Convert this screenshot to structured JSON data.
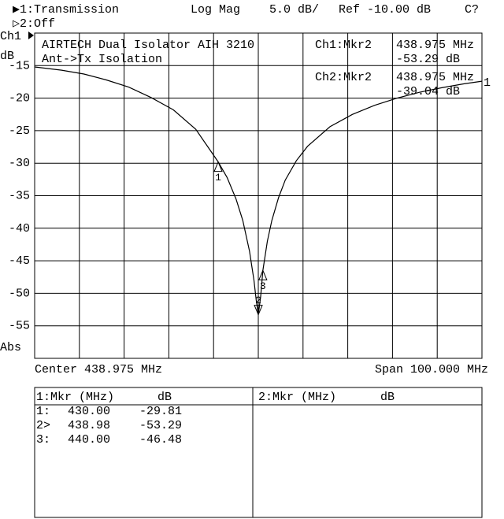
{
  "header": {
    "channel1": "▶1:Transmission",
    "format": "Log Mag",
    "scale": "5.0 dB/",
    "reference": "Ref -10.00 dB",
    "status": "C?",
    "channel2": "▷2:Off"
  },
  "side": {
    "channel": "Ch1",
    "unit": "dB",
    "mode": "Abs"
  },
  "chart_data": {
    "type": "line",
    "title": "AIRTECH Dual Isolator AIH 3210",
    "subtitle": "Ant->Tx Isolation",
    "x": [
      388.975,
      395,
      400,
      405,
      410,
      415,
      420,
      425,
      428,
      430,
      432,
      434,
      435.5,
      437,
      438,
      438.5,
      438.975,
      439.5,
      440,
      441,
      442,
      443.5,
      445,
      447.5,
      450,
      455,
      460,
      465,
      470,
      475,
      480,
      485,
      488.975
    ],
    "values": [
      -15.2,
      -15.7,
      -16.3,
      -17.2,
      -18.3,
      -19.9,
      -21.8,
      -24.8,
      -27.8,
      -29.8,
      -32.2,
      -35.5,
      -38.8,
      -43.5,
      -48.0,
      -51.0,
      -53.3,
      -50.5,
      -46.5,
      -42.0,
      -38.8,
      -35.3,
      -32.6,
      -29.6,
      -27.4,
      -24.4,
      -22.5,
      -21.1,
      -20.0,
      -19.1,
      -18.4,
      -17.8,
      -17.4
    ],
    "color": "#000000",
    "trace_label": "1",
    "xlim": [
      388.975,
      488.975
    ],
    "ylim": [
      -60,
      -10
    ],
    "yticks": [
      -15,
      -20,
      -25,
      -30,
      -35,
      -40,
      -45,
      -50,
      -55
    ],
    "grid": true,
    "markers": {
      "x": [
        430,
        438.98,
        440
      ],
      "values": [
        -29.81,
        -53.29,
        -46.48
      ],
      "labels": [
        "1",
        "2",
        "3"
      ]
    },
    "x_center": "Center 438.975 MHz",
    "x_span": "Span 100.000 MHz",
    "readouts": [
      {
        "name": "Ch1:Mkr2",
        "freq": "438.975 MHz",
        "level": "-53.29 dB"
      },
      {
        "name": "Ch2:Mkr2",
        "freq": "438.975 MHz",
        "level": "-39.04 dB"
      }
    ]
  },
  "table": {
    "left_header": [
      "1:Mkr (MHz)",
      "dB"
    ],
    "right_header": [
      "2:Mkr (MHz)",
      "dB"
    ],
    "rows": [
      [
        "1:",
        "430.00",
        "-29.81"
      ],
      [
        "2>",
        "438.98",
        "-53.29"
      ],
      [
        "3:",
        "440.00",
        "-46.48"
      ]
    ]
  }
}
